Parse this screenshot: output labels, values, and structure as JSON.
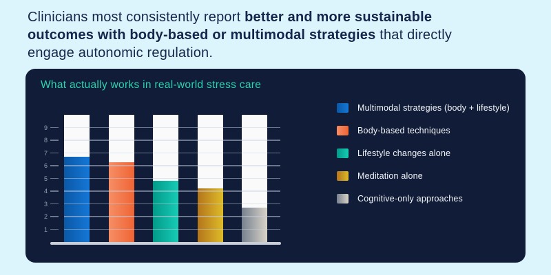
{
  "page": {
    "background": "#dcf5fc"
  },
  "headline": {
    "text_color": "#16254b",
    "lines": [
      {
        "segments": [
          {
            "text": "Clinicians most consistently report ",
            "bold": false
          },
          {
            "text": "better and more sustainable",
            "bold": true
          }
        ]
      },
      {
        "segments": [
          {
            "text": "outcomes with body-based or multimodal strategies",
            "bold": true
          },
          {
            "text": " that directly",
            "bold": false
          }
        ]
      },
      {
        "segments": [
          {
            "text": "engage autonomic regulation.",
            "bold": false
          }
        ]
      }
    ]
  },
  "card": {
    "background": "#101c38",
    "title": "What actually works in real-world stress care",
    "title_color": "#2bd4ae"
  },
  "chart_data": {
    "type": "bar",
    "title": "What actually works in real-world stress care",
    "categories": [
      "Multimodal strategies (body + lifestyle)",
      "Body-based techniques",
      "Lifestyle changes alone",
      "Meditation alone",
      "Cognitive-only approaches"
    ],
    "values": [
      6.7,
      6.25,
      4.8,
      4.2,
      2.7
    ],
    "ylim": [
      0,
      10
    ],
    "yticks": [
      1,
      2,
      3,
      4,
      5,
      6,
      7,
      8,
      9
    ],
    "track_top_value": 10,
    "grid": true,
    "legend_position": "right",
    "xlabel": "",
    "ylabel": "",
    "colors": {
      "track": "#fafafa",
      "gridline": "rgba(200,208,224,0.5)",
      "baseline": "#c9ced8",
      "tick_label": "#99a1b3",
      "legend_text": "#f3f6f9",
      "bar_gradients": [
        {
          "from": "#0a58a6",
          "to": "#1577d6"
        },
        {
          "from": "#f68e66",
          "to": "#ef6434"
        },
        {
          "from": "#029a89",
          "to": "#17ccb6"
        },
        {
          "from": "#b4751c",
          "to": "#debb28"
        },
        {
          "from": "#76818f",
          "to": "#d9d3c8"
        }
      ]
    }
  }
}
